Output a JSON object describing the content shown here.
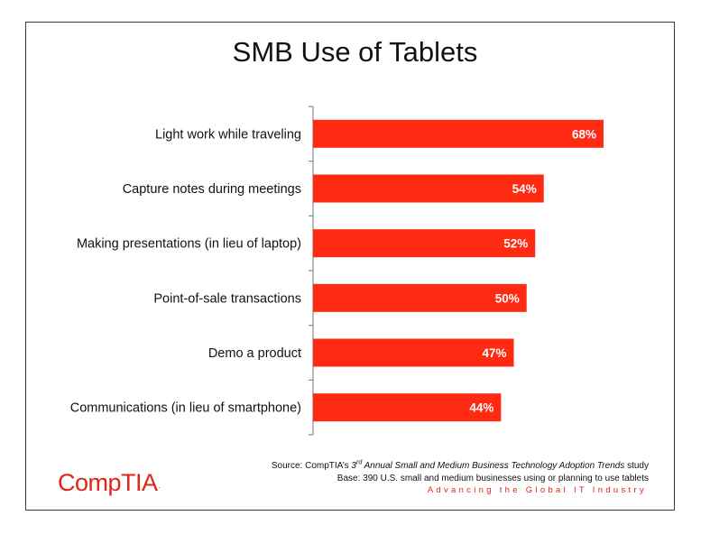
{
  "title": "SMB Use of Tablets",
  "chart_data": {
    "type": "bar",
    "orientation": "horizontal",
    "title": "SMB Use of Tablets",
    "categories": [
      "Light work while traveling",
      "Capture notes during meetings",
      "Making presentations (in lieu of laptop)",
      "Point-of-sale transactions",
      "Demo a product",
      "Communications (in lieu of smartphone)"
    ],
    "values": [
      68,
      54,
      52,
      50,
      47,
      44
    ],
    "value_labels": [
      "68%",
      "54%",
      "52%",
      "50%",
      "47%",
      "44%"
    ],
    "xlim": [
      0,
      100
    ],
    "grid": false,
    "bar_color": "#ff2a12",
    "value_label_color": "#ffffff"
  },
  "source": {
    "line1_prefix": "Source: CompTIA’s ",
    "line1_ordinal": "3",
    "line1_sup": "rd",
    "line1_study": " Annual Small and Medium Business Technology Adoption Trends",
    "line1_suffix": " study",
    "line2": "Base: 390 U.S. small and medium businesses using or planning to use tablets"
  },
  "tagline": "Advancing the Global IT Industry",
  "logo": {
    "text": "CompTIA",
    "mark": ".",
    "color": "#e2231a"
  }
}
